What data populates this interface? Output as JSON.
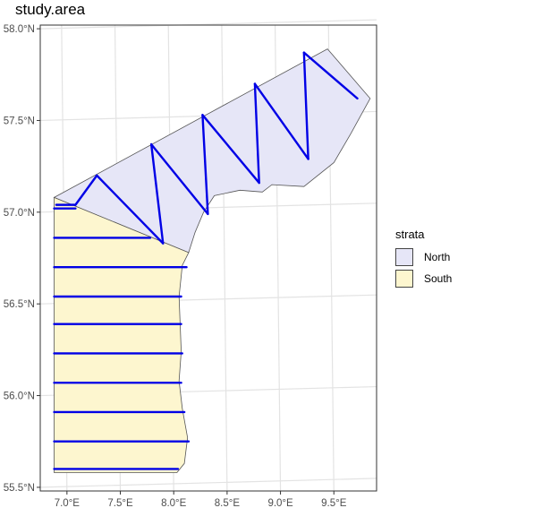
{
  "chart_data": {
    "type": "map",
    "title": "study.area",
    "xlim": [
      6.75,
      9.9
    ],
    "ylim": [
      55.48,
      58.02
    ],
    "x_ticks": [
      {
        "value": 7.0,
        "label": "7.0°E"
      },
      {
        "value": 7.5,
        "label": "7.5°E"
      },
      {
        "value": 8.0,
        "label": "8.0°E"
      },
      {
        "value": 8.5,
        "label": "8.5°E"
      },
      {
        "value": 9.0,
        "label": "9.0°E"
      },
      {
        "value": 9.5,
        "label": "9.5°E"
      }
    ],
    "y_ticks": [
      {
        "value": 55.5,
        "label": "55.5°N"
      },
      {
        "value": 56.0,
        "label": "56.0°N"
      },
      {
        "value": 56.5,
        "label": "56.5°N"
      },
      {
        "value": 57.0,
        "label": "57.0°N"
      },
      {
        "value": 57.5,
        "label": "57.5°N"
      },
      {
        "value": 58.0,
        "label": "58.0°N"
      }
    ],
    "legend": {
      "title": "strata",
      "items": [
        {
          "label": "North",
          "color": "#e6e6f7"
        },
        {
          "label": "South",
          "color": "#fdf6cf"
        }
      ]
    },
    "strata": [
      {
        "name": "North",
        "fill": "#e6e6f7",
        "polygon": [
          [
            6.88,
            57.08
          ],
          [
            9.44,
            57.89
          ],
          [
            9.84,
            57.62
          ],
          [
            9.66,
            57.43
          ],
          [
            9.5,
            57.27
          ],
          [
            9.22,
            57.14
          ],
          [
            8.92,
            57.15
          ],
          [
            8.83,
            57.11
          ],
          [
            8.62,
            57.12
          ],
          [
            8.38,
            57.09
          ],
          [
            8.28,
            57.0
          ],
          [
            8.2,
            56.89
          ],
          [
            8.14,
            56.78
          ]
        ]
      },
      {
        "name": "South",
        "fill": "#fdf6cf",
        "polygon": [
          [
            6.88,
            57.08
          ],
          [
            8.14,
            56.78
          ],
          [
            8.08,
            56.71
          ],
          [
            8.05,
            56.54
          ],
          [
            8.06,
            56.39
          ],
          [
            8.07,
            56.24
          ],
          [
            8.05,
            56.08
          ],
          [
            8.08,
            55.93
          ],
          [
            8.13,
            55.77
          ],
          [
            8.1,
            55.63
          ],
          [
            8.03,
            55.58
          ],
          [
            6.88,
            55.58
          ]
        ]
      }
    ],
    "transects_north": [
      [
        [
          7.08,
          57.04
        ],
        [
          7.28,
          57.2
        ]
      ],
      [
        [
          7.28,
          57.2
        ],
        [
          7.9,
          56.83
        ]
      ],
      [
        [
          7.9,
          56.83
        ],
        [
          7.79,
          57.37
        ]
      ],
      [
        [
          7.79,
          57.37
        ],
        [
          8.32,
          56.99
        ]
      ],
      [
        [
          8.32,
          56.99
        ],
        [
          8.27,
          57.53
        ]
      ],
      [
        [
          8.27,
          57.53
        ],
        [
          8.8,
          57.16
        ]
      ],
      [
        [
          8.8,
          57.16
        ],
        [
          8.76,
          57.7
        ]
      ],
      [
        [
          8.76,
          57.7
        ],
        [
          9.26,
          57.29
        ]
      ],
      [
        [
          9.26,
          57.29
        ],
        [
          9.22,
          57.87
        ]
      ],
      [
        [
          9.22,
          57.87
        ],
        [
          9.72,
          57.62
        ]
      ],
      [
        [
          7.08,
          57.04
        ],
        [
          6.9,
          57.04
        ]
      ]
    ],
    "transects_south": [
      {
        "lat": 57.02,
        "x0": 6.88,
        "x1": 7.08
      },
      {
        "lat": 56.86,
        "x0": 6.88,
        "x1": 7.78
      },
      {
        "lat": 56.7,
        "x0": 6.88,
        "x1": 8.12
      },
      {
        "lat": 56.54,
        "x0": 6.88,
        "x1": 8.07
      },
      {
        "lat": 56.39,
        "x0": 6.88,
        "x1": 8.07
      },
      {
        "lat": 56.23,
        "x0": 6.88,
        "x1": 8.08
      },
      {
        "lat": 56.07,
        "x0": 6.88,
        "x1": 8.07
      },
      {
        "lat": 55.91,
        "x0": 6.88,
        "x1": 8.1
      },
      {
        "lat": 55.75,
        "x0": 6.88,
        "x1": 8.14
      },
      {
        "lat": 55.6,
        "x0": 6.88,
        "x1": 8.04
      }
    ],
    "transect_color": "#0000e6"
  }
}
